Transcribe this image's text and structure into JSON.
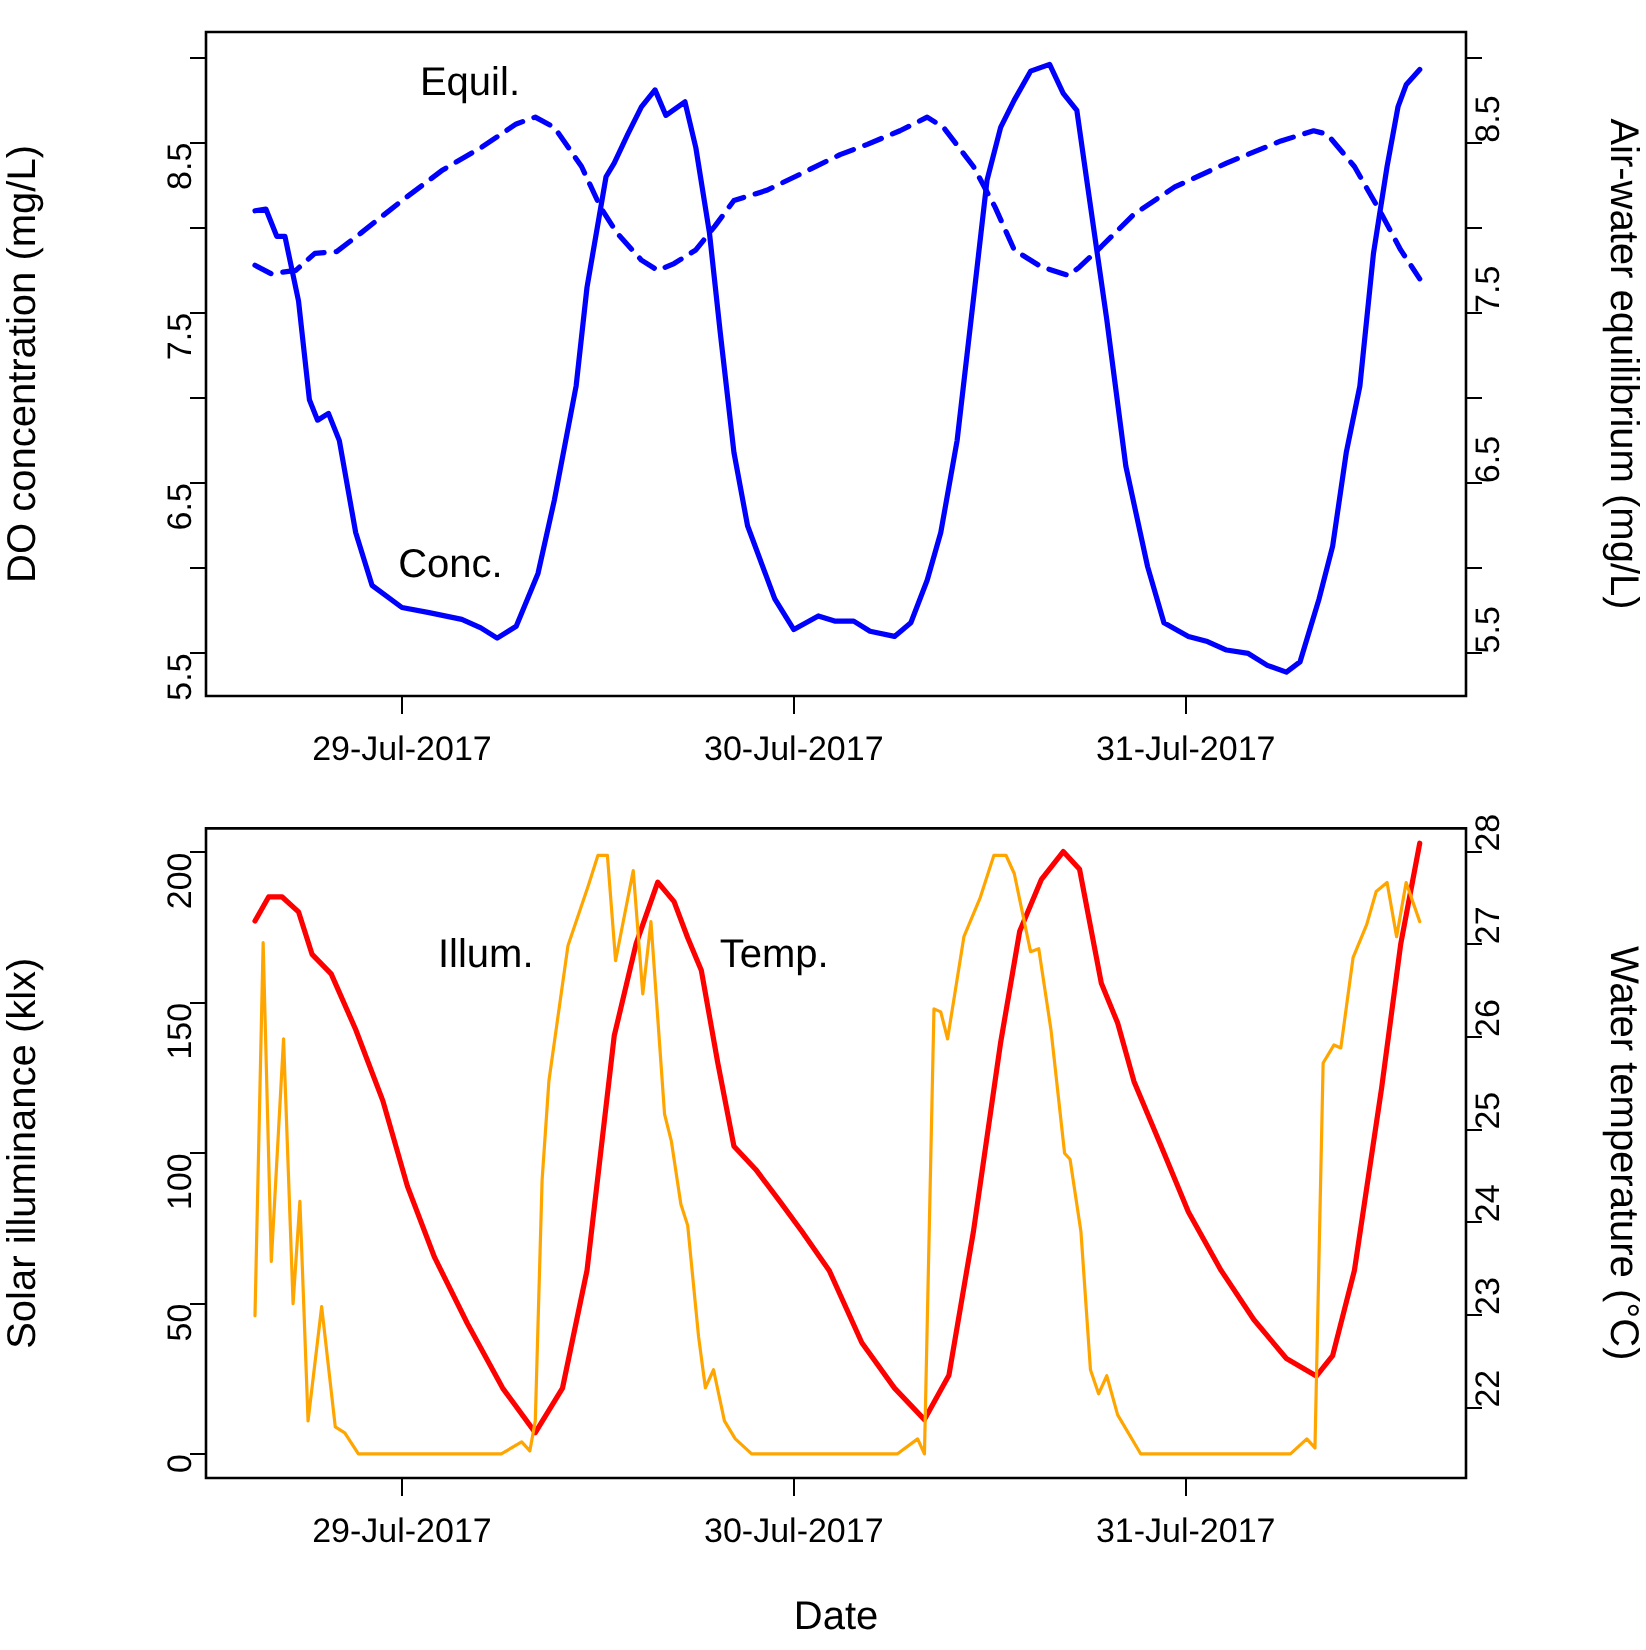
{
  "chart_data": [
    {
      "type": "line",
      "ylabel": "DO concentration (mg/L)",
      "y2label": "Air-water equilibrium (mg/L)",
      "xlim": [
        "2017-07-28T12:00",
        "2017-07-31T17:10"
      ],
      "xticks": [
        {
          "value": "2017-07-29",
          "label": "29-Jul-2017"
        },
        {
          "value": "2017-07-30",
          "label": "30-Jul-2017"
        },
        {
          "value": "2017-07-31",
          "label": "31-Jul-2017"
        }
      ],
      "ylim": [
        5.25,
        9.15
      ],
      "yticks": [
        5.5,
        {
          "value": 6,
          "label": null
        },
        6.5,
        {
          "value": 7,
          "label": null
        },
        7.5,
        {
          "value": 8,
          "label": null
        },
        8.5,
        {
          "value": 9,
          "label": null
        }
      ],
      "y2lim": [
        5.25,
        9.15
      ],
      "y2ticks": [
        5.5,
        {
          "value": 6,
          "label": null
        },
        6.5,
        {
          "value": 7,
          "label": null
        },
        7.5,
        {
          "value": 8,
          "label": null
        },
        8.5,
        {
          "value": 9,
          "label": null
        }
      ],
      "annotations": [
        "Equil.",
        "Conc."
      ],
      "series": [
        {
          "color": "#0000ff",
          "line_style": "solid",
          "x": [
            "2017-07-28T15:00",
            "2017-07-28T15:40",
            "2017-07-28T16:20",
            "2017-07-28T16:50",
            "2017-07-28T17:40",
            "2017-07-28T18:20",
            "2017-07-28T18:50",
            "2017-07-28T19:30",
            "2017-07-28T20:10",
            "2017-07-28T21:10",
            "2017-07-28T22:10",
            "2017-07-29T00:00",
            "2017-07-29T01:40",
            "2017-07-29T03:40",
            "2017-07-29T04:50",
            "2017-07-29T05:50",
            "2017-07-29T07:00",
            "2017-07-29T08:20",
            "2017-07-29T09:20",
            "2017-07-29T10:40",
            "2017-07-29T11:20",
            "2017-07-29T12:30",
            "2017-07-29T13:00",
            "2017-07-29T13:50",
            "2017-07-29T14:40",
            "2017-07-29T15:30",
            "2017-07-29T16:10",
            "2017-07-29T17:20",
            "2017-07-29T18:00",
            "2017-07-29T18:50",
            "2017-07-29T19:30",
            "2017-07-29T20:20",
            "2017-07-29T21:10",
            "2017-07-29T22:50",
            "2017-07-30T00:00",
            "2017-07-30T01:30",
            "2017-07-30T02:30",
            "2017-07-30T03:40",
            "2017-07-30T04:40",
            "2017-07-30T06:10",
            "2017-07-30T07:10",
            "2017-07-30T08:10",
            "2017-07-30T09:00",
            "2017-07-30T10:00",
            "2017-07-30T11:00",
            "2017-07-30T11:50",
            "2017-07-30T12:40",
            "2017-07-30T13:30",
            "2017-07-30T14:30",
            "2017-07-30T15:40",
            "2017-07-30T16:30",
            "2017-07-30T17:20",
            "2017-07-30T18:00",
            "2017-07-30T19:10",
            "2017-07-30T20:20",
            "2017-07-30T21:40",
            "2017-07-30T22:40",
            "2017-07-31T00:10",
            "2017-07-31T01:20",
            "2017-07-31T02:30",
            "2017-07-31T03:50",
            "2017-07-31T05:00",
            "2017-07-31T06:10",
            "2017-07-31T07:00",
            "2017-07-31T08:10",
            "2017-07-31T09:00",
            "2017-07-31T09:50",
            "2017-07-31T10:40",
            "2017-07-31T11:30",
            "2017-07-31T12:20",
            "2017-07-31T13:00",
            "2017-07-31T13:30",
            "2017-07-31T14:20"
          ],
          "values": [
            8.1,
            8.11,
            7.95,
            7.95,
            7.57,
            6.99,
            6.87,
            6.91,
            6.75,
            6.21,
            5.9,
            5.77,
            5.74,
            5.7,
            5.65,
            5.59,
            5.66,
            5.97,
            6.4,
            7.07,
            7.65,
            8.3,
            8.38,
            8.55,
            8.71,
            8.81,
            8.66,
            8.74,
            8.47,
            7.97,
            7.38,
            6.68,
            6.25,
            5.82,
            5.64,
            5.72,
            5.69,
            5.69,
            5.63,
            5.6,
            5.68,
            5.93,
            6.21,
            6.75,
            7.58,
            8.28,
            8.59,
            8.75,
            8.92,
            8.96,
            8.79,
            8.69,
            8.24,
            7.46,
            6.6,
            6.01,
            5.68,
            5.6,
            5.57,
            5.52,
            5.5,
            5.43,
            5.39,
            5.45,
            5.82,
            6.13,
            6.68,
            7.07,
            7.85,
            8.36,
            8.71,
            8.84,
            8.93
          ]
        },
        {
          "color": "#0000ff",
          "line_style": "dashed",
          "axis": "y2",
          "x": [
            "2017-07-28T15:00",
            "2017-07-28T16:00",
            "2017-07-28T17:30",
            "2017-07-28T18:40",
            "2017-07-28T20:00",
            "2017-07-28T21:30",
            "2017-07-29T00:00",
            "2017-07-29T02:30",
            "2017-07-29T04:50",
            "2017-07-29T07:00",
            "2017-07-29T08:10",
            "2017-07-29T09:20",
            "2017-07-29T11:00",
            "2017-07-29T12:10",
            "2017-07-29T13:10",
            "2017-07-29T14:40",
            "2017-07-29T15:40",
            "2017-07-29T16:40",
            "2017-07-29T18:00",
            "2017-07-29T19:10",
            "2017-07-29T20:20",
            "2017-07-29T22:20",
            "2017-07-30T00:30",
            "2017-07-30T02:50",
            "2017-07-30T04:30",
            "2017-07-30T06:30",
            "2017-07-30T08:10",
            "2017-07-30T09:10",
            "2017-07-30T11:00",
            "2017-07-30T12:20",
            "2017-07-30T13:30",
            "2017-07-30T15:10",
            "2017-07-30T16:50",
            "2017-07-30T17:30",
            "2017-07-30T18:50",
            "2017-07-30T20:50",
            "2017-07-30T23:20",
            "2017-07-31T02:30",
            "2017-07-31T05:50",
            "2017-07-31T07:50",
            "2017-07-31T08:40",
            "2017-07-31T10:20",
            "2017-07-31T12:00",
            "2017-07-31T13:10",
            "2017-07-31T14:20"
          ],
          "values": [
            7.78,
            7.73,
            7.75,
            7.85,
            7.86,
            7.97,
            8.16,
            8.34,
            8.47,
            8.61,
            8.65,
            8.59,
            8.36,
            8.12,
            7.97,
            7.81,
            7.75,
            7.79,
            7.87,
            8.01,
            8.16,
            8.22,
            8.32,
            8.43,
            8.49,
            8.57,
            8.65,
            8.59,
            8.36,
            8.12,
            7.87,
            7.77,
            7.72,
            7.77,
            7.89,
            8.08,
            8.24,
            8.38,
            8.51,
            8.57,
            8.55,
            8.36,
            8.08,
            7.87,
            7.7
          ]
        }
      ]
    },
    {
      "type": "line",
      "xlabel": "Date",
      "ylabel": "Solar illuminance (klx)",
      "y2label": "Water temperature (°C)",
      "xlim": [
        "2017-07-28T12:00",
        "2017-07-31T17:10"
      ],
      "xticks": [
        {
          "value": "2017-07-29",
          "label": "29-Jul-2017"
        },
        {
          "value": "2017-07-30",
          "label": "30-Jul-2017"
        },
        {
          "value": "2017-07-31",
          "label": "31-Jul-2017"
        }
      ],
      "ylim": [
        -8,
        208
      ],
      "yticks": [
        0,
        50,
        100,
        150,
        200
      ],
      "y2lim": [
        21.24,
        28.25
      ],
      "y2ticks": [
        22,
        23,
        24,
        25,
        26,
        27,
        28
      ],
      "annotations": [
        "Illum.",
        "Temp."
      ],
      "series": [
        {
          "color": "#ffa500",
          "line_style": "solid",
          "x": [
            "2017-07-28T15:00",
            "2017-07-28T15:30",
            "2017-07-28T16:00",
            "2017-07-28T16:45",
            "2017-07-28T17:20",
            "2017-07-28T17:45",
            "2017-07-28T18:15",
            "2017-07-28T19:05",
            "2017-07-28T19:55",
            "2017-07-28T20:30",
            "2017-07-28T21:20",
            "2017-07-29T06:05",
            "2017-07-29T07:20",
            "2017-07-29T07:50",
            "2017-07-29T08:10",
            "2017-07-29T08:35",
            "2017-07-29T09:00",
            "2017-07-29T10:10",
            "2017-07-29T11:25",
            "2017-07-29T12:00",
            "2017-07-29T12:35",
            "2017-07-29T13:05",
            "2017-07-29T14:10",
            "2017-07-29T14:45",
            "2017-07-29T15:15",
            "2017-07-29T16:05",
            "2017-07-29T16:30",
            "2017-07-29T17:05",
            "2017-07-29T17:30",
            "2017-07-29T18:10",
            "2017-07-29T18:35",
            "2017-07-29T19:05",
            "2017-07-29T19:45",
            "2017-07-29T20:25",
            "2017-07-29T21:25",
            "2017-07-30T06:20",
            "2017-07-30T07:35",
            "2017-07-30T08:00",
            "2017-07-30T08:35",
            "2017-07-30T09:00",
            "2017-07-30T09:25",
            "2017-07-30T10:25",
            "2017-07-30T11:25",
            "2017-07-30T12:15",
            "2017-07-30T13:00",
            "2017-07-30T13:30",
            "2017-07-30T14:30",
            "2017-07-30T15:00",
            "2017-07-30T15:45",
            "2017-07-30T16:35",
            "2017-07-30T16:55",
            "2017-07-30T17:35",
            "2017-07-30T18:10",
            "2017-07-30T18:40",
            "2017-07-30T19:10",
            "2017-07-30T19:50",
            "2017-07-30T21:15",
            "2017-07-31T06:25",
            "2017-07-31T07:25",
            "2017-07-31T07:55",
            "2017-07-31T08:25",
            "2017-07-31T09:05",
            "2017-07-31T09:30",
            "2017-07-31T10:15",
            "2017-07-31T11:05",
            "2017-07-31T11:40",
            "2017-07-31T12:20",
            "2017-07-31T12:55",
            "2017-07-31T13:30",
            "2017-07-31T14:20"
          ],
          "values": [
            46,
            170,
            64,
            138,
            50,
            84,
            11,
            49,
            9,
            7,
            0,
            0,
            4,
            1,
            11,
            91,
            124,
            169,
            189,
            199,
            199,
            164,
            194,
            153,
            177,
            113,
            104,
            83,
            76,
            39,
            22,
            28,
            11,
            5,
            0,
            0,
            5,
            0,
            148,
            147,
            138,
            172,
            185,
            199,
            199,
            193,
            167,
            168,
            141,
            100,
            98,
            74,
            28,
            20,
            26,
            13,
            0,
            0,
            5,
            2,
            130,
            136,
            135,
            165,
            176,
            187,
            190,
            172,
            190,
            177
          ]
        },
        {
          "color": "#ff0000",
          "line_style": "solid",
          "axis": "y2",
          "x": [
            "2017-07-28T15:00",
            "2017-07-28T15:50",
            "2017-07-28T16:40",
            "2017-07-28T17:40",
            "2017-07-28T18:30",
            "2017-07-28T19:40",
            "2017-07-28T21:10",
            "2017-07-28T22:50",
            "2017-07-29T00:20",
            "2017-07-29T02:00",
            "2017-07-29T04:00",
            "2017-07-29T06:10",
            "2017-07-29T08:10",
            "2017-07-29T09:50",
            "2017-07-29T11:20",
            "2017-07-29T13:00",
            "2017-07-29T14:20",
            "2017-07-29T15:40",
            "2017-07-29T16:40",
            "2017-07-29T17:30",
            "2017-07-29T18:20",
            "2017-07-29T19:20",
            "2017-07-29T20:20",
            "2017-07-29T21:40",
            "2017-07-29T23:10",
            "2017-07-30T00:30",
            "2017-07-30T02:10",
            "2017-07-30T04:10",
            "2017-07-30T06:10",
            "2017-07-30T08:00",
            "2017-07-30T09:30",
            "2017-07-30T11:00",
            "2017-07-30T12:40",
            "2017-07-30T13:50",
            "2017-07-30T15:10",
            "2017-07-30T16:30",
            "2017-07-30T17:30",
            "2017-07-30T18:50",
            "2017-07-30T19:50",
            "2017-07-30T20:50",
            "2017-07-30T22:30",
            "2017-07-31T00:10",
            "2017-07-31T02:10",
            "2017-07-31T04:10",
            "2017-07-31T06:10",
            "2017-07-31T08:00",
            "2017-07-31T09:00",
            "2017-07-31T10:20",
            "2017-07-31T12:00",
            "2017-07-31T13:10",
            "2017-07-31T14:20"
          ],
          "values": [
            27.25,
            27.51,
            27.51,
            27.35,
            26.89,
            26.68,
            26.08,
            25.31,
            24.39,
            23.62,
            22.91,
            22.21,
            21.73,
            22.21,
            23.48,
            26.01,
            27.0,
            27.67,
            27.46,
            27.07,
            26.72,
            25.73,
            24.82,
            24.57,
            24.22,
            23.9,
            23.48,
            22.7,
            22.21,
            21.87,
            22.35,
            23.9,
            25.94,
            27.14,
            27.7,
            28.0,
            27.81,
            26.58,
            26.15,
            25.52,
            24.82,
            24.11,
            23.48,
            22.95,
            22.53,
            22.34,
            22.56,
            23.48,
            25.45,
            27.0,
            28.09
          ]
        }
      ]
    }
  ]
}
